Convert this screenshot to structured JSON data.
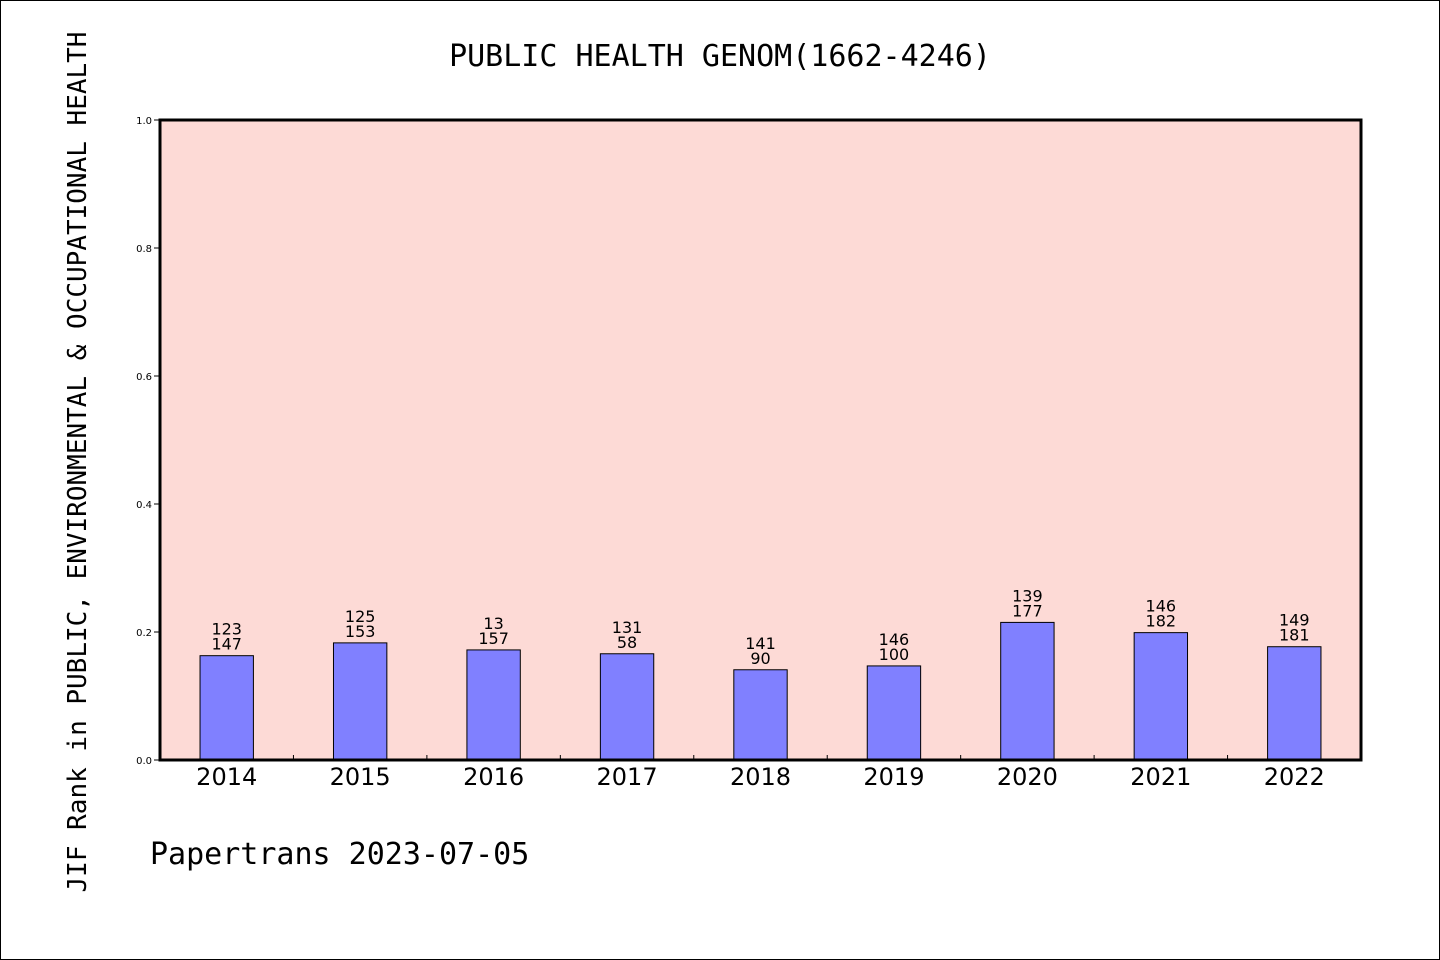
{
  "chart_data": {
    "type": "bar",
    "title": "PUBLIC HEALTH GENOM(1662-4246)",
    "ylabel": "JIF Rank in PUBLIC, ENVIRONMENTAL & OCCUPATIONAL HEALTH",
    "xlabel": "",
    "footer": "Papertrans 2023-07-05",
    "categories": [
      "2014",
      "2015",
      "2016",
      "2017",
      "2018",
      "2019",
      "2020",
      "2021",
      "2022"
    ],
    "values": [
      0.163,
      0.183,
      0.172,
      0.166,
      0.141,
      0.147,
      0.215,
      0.199,
      0.177
    ],
    "labels_top": [
      "123",
      "125",
      "13",
      "131",
      "141",
      "146",
      "139",
      "146",
      "149"
    ],
    "labels_bottom": [
      "147",
      "153",
      "157",
      "58",
      "90",
      "100",
      "177",
      "182",
      "181"
    ],
    "ylim": [
      0,
      1.0
    ],
    "yticks": [
      "0.0",
      "0.2",
      "0.4",
      "0.6",
      "0.8",
      "1.0"
    ],
    "grid": false,
    "colors": {
      "plot_background": "#fddad6",
      "bar_fill": "#8080ff",
      "bar_stroke": "#000000"
    }
  }
}
